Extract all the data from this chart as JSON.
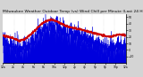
{
  "title": "Milwaukee Weather Outdoor Temp (vs) Wind Chill per Minute (Last 24 Hours)",
  "bg_color": "#d4d4d4",
  "plot_bg_color": "#ffffff",
  "blue_fill_color": "#0000dd",
  "red_line_color": "#cc0000",
  "grid_color": "#bbbbbb",
  "ylim_min": -20,
  "ylim_max": 55,
  "xlim_min": 0,
  "xlim_max": 1440,
  "num_points": 1440,
  "title_fontsize": 3.2,
  "tick_fontsize": 2.2,
  "red_profile": [
    22,
    20,
    18,
    14,
    16,
    22,
    30,
    38,
    44,
    46,
    44,
    40,
    36,
    34,
    32,
    30,
    28,
    26,
    24,
    22,
    20,
    22,
    24,
    22
  ],
  "blue_profile": [
    10,
    8,
    5,
    2,
    4,
    10,
    18,
    26,
    34,
    36,
    34,
    30,
    26,
    24,
    22,
    18,
    14,
    10,
    6,
    4,
    2,
    4,
    6,
    4
  ],
  "yticks": [
    -10,
    0,
    10,
    20,
    30,
    40,
    50
  ],
  "num_gridlines": 11
}
